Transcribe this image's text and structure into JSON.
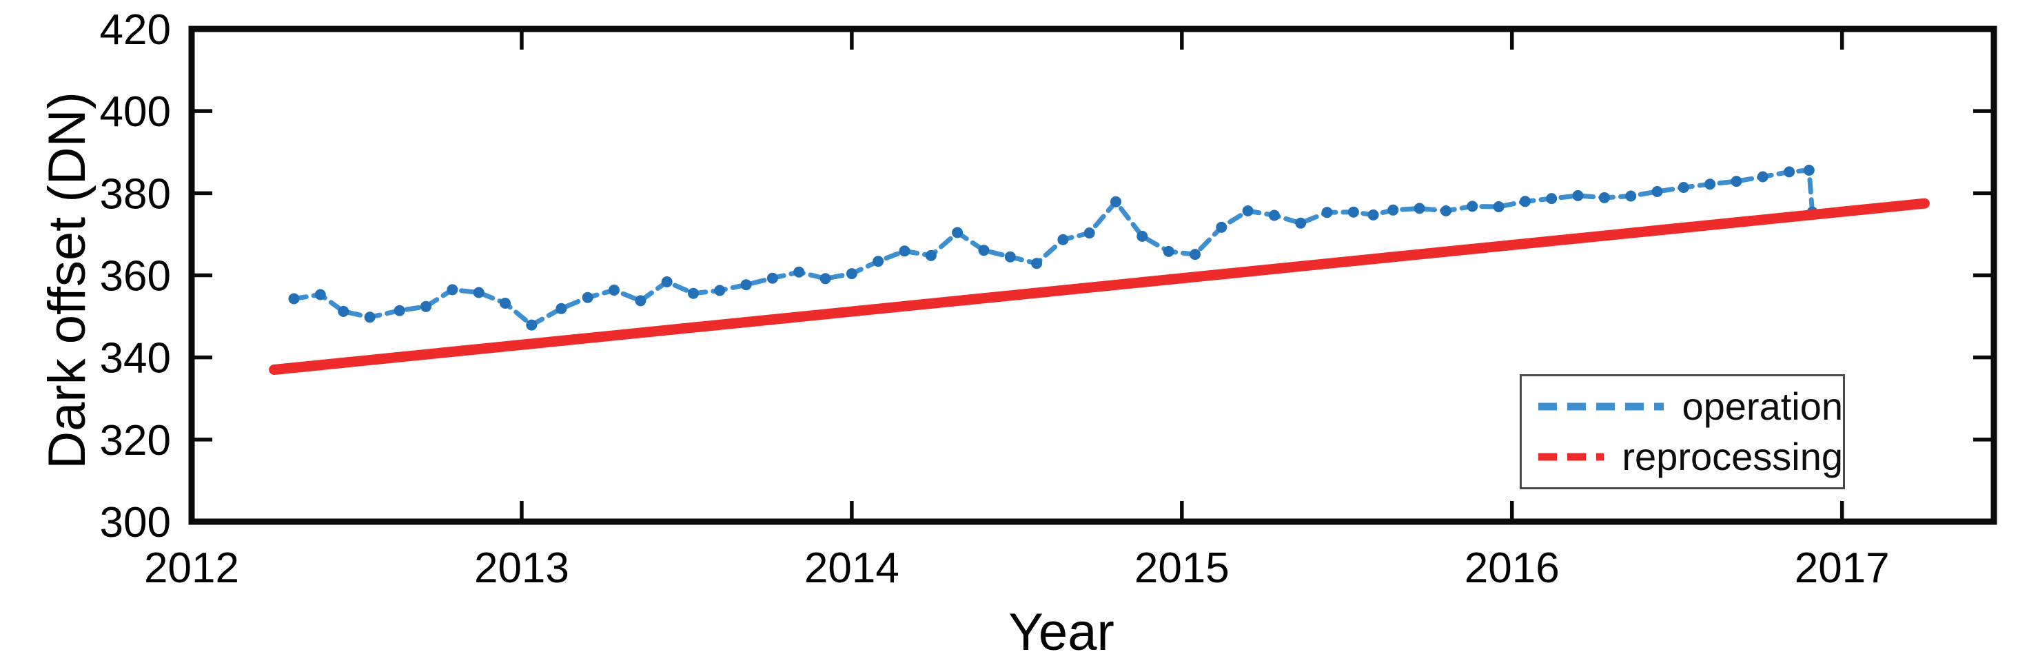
{
  "figure": {
    "title": "",
    "background": "#ffffff"
  },
  "chart_data": {
    "type": "line",
    "title": "",
    "xlabel": "Year",
    "ylabel": "Dark offset (DN)",
    "xlim": [
      2012,
      2017.46
    ],
    "ylim": [
      300,
      420
    ],
    "x_ticks": [
      2012,
      2013,
      2014,
      2015,
      2016,
      2017
    ],
    "y_ticks": [
      300,
      320,
      340,
      360,
      380,
      400,
      420
    ],
    "grid": false,
    "frame": "box",
    "tick_direction": "in",
    "legend_position": "lower right",
    "series": [
      {
        "name": "operation",
        "color": "#3d8fd0",
        "marker_color": "#2470b6",
        "dashed": true,
        "markers": true,
        "line_width": 7,
        "points": [
          [
            2012.31,
            354.3
          ],
          [
            2012.39,
            355.3
          ],
          [
            2012.46,
            351.2
          ],
          [
            2012.54,
            349.8
          ],
          [
            2012.63,
            351.4
          ],
          [
            2012.71,
            352.4
          ],
          [
            2012.79,
            356.5
          ],
          [
            2012.87,
            355.8
          ],
          [
            2012.95,
            353.2
          ],
          [
            2013.03,
            347.9
          ],
          [
            2013.12,
            351.9
          ],
          [
            2013.2,
            354.6
          ],
          [
            2013.28,
            356.4
          ],
          [
            2013.36,
            353.8
          ],
          [
            2013.44,
            358.4
          ],
          [
            2013.52,
            355.6
          ],
          [
            2013.6,
            356.3
          ],
          [
            2013.68,
            357.7
          ],
          [
            2013.76,
            359.3
          ],
          [
            2013.84,
            360.8
          ],
          [
            2013.92,
            359.2
          ],
          [
            2014.0,
            360.4
          ],
          [
            2014.08,
            363.4
          ],
          [
            2014.16,
            365.9
          ],
          [
            2014.24,
            364.8
          ],
          [
            2014.32,
            370.4
          ],
          [
            2014.4,
            366.1
          ],
          [
            2014.48,
            364.5
          ],
          [
            2014.56,
            362.9
          ],
          [
            2014.64,
            368.7
          ],
          [
            2014.72,
            370.3
          ],
          [
            2014.8,
            377.9
          ],
          [
            2014.88,
            369.5
          ],
          [
            2014.96,
            365.8
          ],
          [
            2015.04,
            365.1
          ],
          [
            2015.12,
            371.7
          ],
          [
            2015.2,
            375.7
          ],
          [
            2015.28,
            374.6
          ],
          [
            2015.36,
            372.7
          ],
          [
            2015.44,
            375.3
          ],
          [
            2015.52,
            375.4
          ],
          [
            2015.58,
            374.7
          ],
          [
            2015.64,
            375.9
          ],
          [
            2015.72,
            376.3
          ],
          [
            2015.8,
            375.7
          ],
          [
            2015.88,
            376.8
          ],
          [
            2015.96,
            376.7
          ],
          [
            2016.04,
            378.0
          ],
          [
            2016.12,
            378.7
          ],
          [
            2016.2,
            379.4
          ],
          [
            2016.28,
            378.9
          ],
          [
            2016.36,
            379.3
          ],
          [
            2016.44,
            380.4
          ],
          [
            2016.52,
            381.4
          ],
          [
            2016.6,
            382.2
          ],
          [
            2016.68,
            382.9
          ],
          [
            2016.76,
            384.0
          ],
          [
            2016.84,
            385.2
          ],
          [
            2016.9,
            385.6
          ],
          [
            2016.91,
            375.4
          ]
        ]
      },
      {
        "name": "reprocessing",
        "color": "#ed2b2b",
        "marker_color": "#ed2b2b",
        "dashed": false,
        "markers": false,
        "line_width": 15,
        "points": [
          [
            2012.25,
            337.0
          ],
          [
            2017.25,
            377.5
          ]
        ]
      }
    ]
  },
  "legend": {
    "items": [
      {
        "label": "operation",
        "color": "#3d8fd0"
      },
      {
        "label": "reprocessing",
        "color": "#ed2b2b"
      }
    ]
  },
  "axis": {
    "frame_color": "#0a0a0a",
    "tick_label_color": "#000000"
  }
}
